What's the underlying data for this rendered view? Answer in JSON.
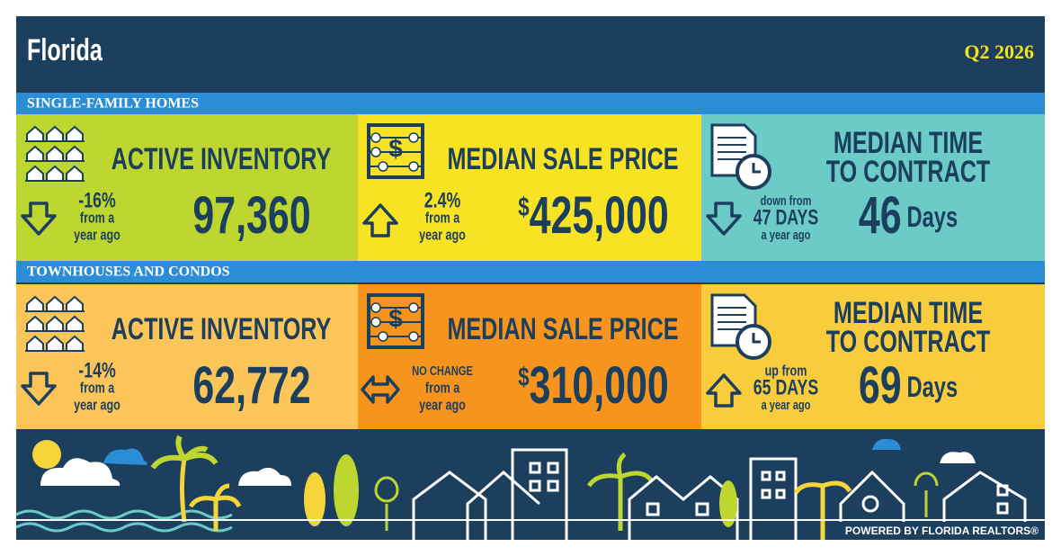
{
  "header": {
    "title": "Florida",
    "period": "Q2 2026"
  },
  "sections": [
    {
      "heading": "SINGLE-FAMILY HOMES",
      "cards": [
        {
          "title": [
            "ACTIVE INVENTORY"
          ],
          "trend": "down",
          "change": [
            "-16%",
            "from a",
            "year ago"
          ],
          "value": "97,360",
          "color": "#bdd630"
        },
        {
          "title": [
            "MEDIAN SALE PRICE"
          ],
          "trend": "up",
          "change": [
            "2.4%",
            "from a",
            "year ago"
          ],
          "currency": "$",
          "value": "425,000",
          "color": "#f8e224"
        },
        {
          "title": [
            "MEDIAN TIME",
            "TO CONTRACT"
          ],
          "trend": "down",
          "change": [
            "down from",
            "47 DAYS",
            "a year ago"
          ],
          "value": "46",
          "unit": "Days",
          "color": "#6ccac7"
        }
      ]
    },
    {
      "heading": "TOWNHOUSES AND CONDOS",
      "cards": [
        {
          "title": [
            "ACTIVE INVENTORY"
          ],
          "trend": "down",
          "change": [
            "-14%",
            "from a",
            "year ago"
          ],
          "value": "62,772",
          "color": "#fcc55a"
        },
        {
          "title": [
            "MEDIAN SALE PRICE"
          ],
          "trend": "flat",
          "change": [
            "NO CHANGE",
            "from a",
            "year ago"
          ],
          "currency": "$",
          "value": "310,000",
          "color": "#f7941d"
        },
        {
          "title": [
            "MEDIAN TIME",
            "TO CONTRACT"
          ],
          "trend": "up",
          "change": [
            "up from",
            "65 DAYS",
            "a year ago"
          ],
          "value": "69",
          "unit": "Days",
          "color": "#f8cc3c"
        }
      ]
    }
  ],
  "footer": "POWERED BY FLORIDA REALTORS®"
}
